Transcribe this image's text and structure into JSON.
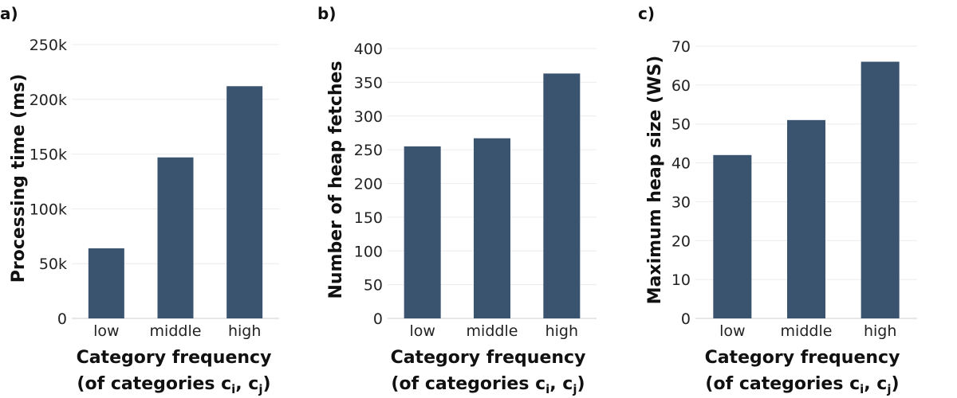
{
  "bar_color": "#3a536e",
  "chart_data": [
    {
      "type": "bar",
      "panel": "a)",
      "categories": [
        "low",
        "middle",
        "high"
      ],
      "values": [
        64000,
        147000,
        212000
      ],
      "ylabel": "Processing time (ms)",
      "xlabel_line1": "Category frequency",
      "xlabel_line2": "(of categories c",
      "xlabel_sub1": "i",
      "xlabel_sep": ", c",
      "xlabel_sub2": "j",
      "xlabel_end": ")",
      "ylim": [
        0,
        250000
      ],
      "yticks": [
        0,
        50000,
        100000,
        150000,
        200000,
        250000
      ],
      "yticklabels": [
        "0",
        "50k",
        "100k",
        "150k",
        "200k",
        "250k"
      ],
      "grid": true
    },
    {
      "type": "bar",
      "panel": "b)",
      "categories": [
        "low",
        "middle",
        "high"
      ],
      "values": [
        255,
        267,
        363
      ],
      "ylabel": "Number of heap fetches",
      "xlabel_line1": "Category frequency",
      "xlabel_line2": "(of categories c",
      "xlabel_sub1": "i",
      "xlabel_sep": ", c",
      "xlabel_sub2": "j",
      "xlabel_end": ")",
      "ylim": [
        0,
        400
      ],
      "yticks": [
        0,
        50,
        100,
        150,
        200,
        250,
        300,
        350,
        400
      ],
      "yticklabels": [
        "0",
        "50",
        "100",
        "150",
        "200",
        "250",
        "300",
        "350",
        "400"
      ],
      "grid": true
    },
    {
      "type": "bar",
      "panel": "c)",
      "categories": [
        "low",
        "middle",
        "high"
      ],
      "values": [
        42,
        51,
        66
      ],
      "ylabel": "Maximum heap size (WS)",
      "xlabel_line1": "Category frequency",
      "xlabel_line2": "(of categories c",
      "xlabel_sub1": "i",
      "xlabel_sep": ", c",
      "xlabel_sub2": "j",
      "xlabel_end": ")",
      "ylim": [
        0,
        70
      ],
      "yticks": [
        0,
        10,
        20,
        30,
        40,
        50,
        60,
        70
      ],
      "yticklabels": [
        "0",
        "10",
        "20",
        "30",
        "40",
        "50",
        "60",
        "70"
      ],
      "grid": true
    }
  ]
}
